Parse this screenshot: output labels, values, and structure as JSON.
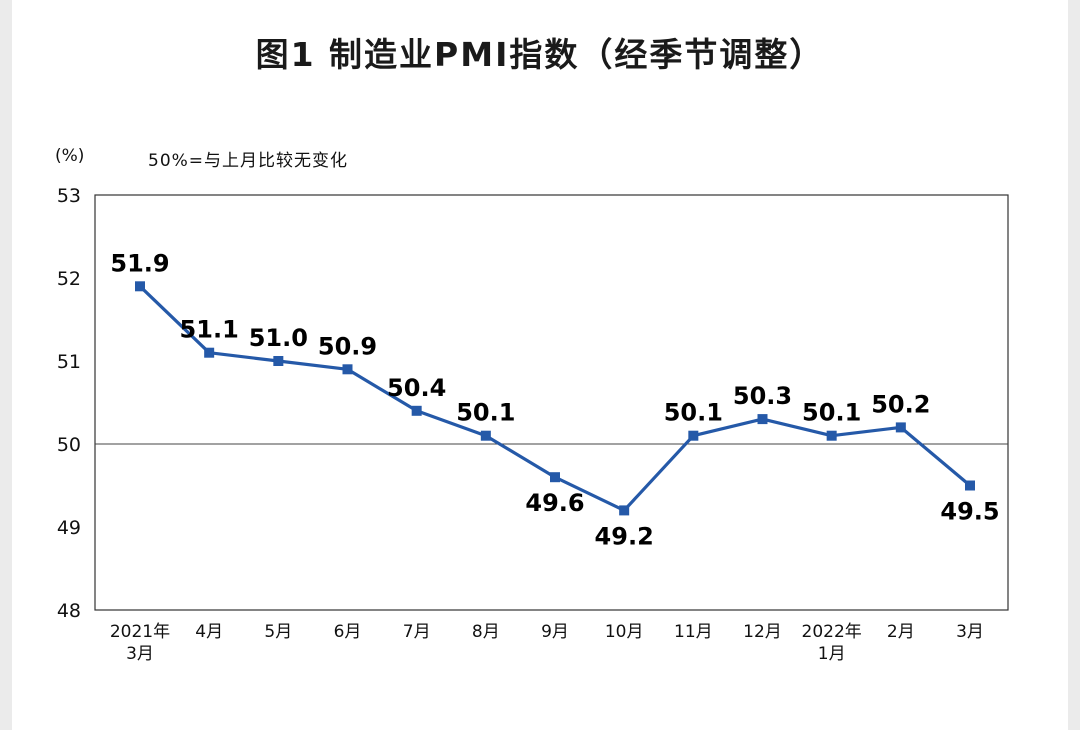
{
  "page": {
    "title": "图1 制造业PMI指数（经季节调整）",
    "unit_label": "(%)",
    "note": "50%=与上月比较无变化"
  },
  "chart_data": {
    "type": "line",
    "title": "图1 制造业PMI指数（经季节调整）",
    "note": "50%=与上月比较无变化",
    "unit": "%",
    "series_name": "制造业PMI指数",
    "categories": [
      "2021年\n3月",
      "4月",
      "5月",
      "6月",
      "7月",
      "8月",
      "9月",
      "10月",
      "11月",
      "12月",
      "2022年\n1月",
      "2月",
      "3月"
    ],
    "values": [
      51.9,
      51.1,
      51.0,
      50.9,
      50.4,
      50.1,
      49.6,
      49.2,
      50.1,
      50.3,
      50.1,
      50.2,
      49.5
    ],
    "ylim": [
      48,
      53
    ],
    "yticks": [
      53,
      52,
      51,
      50,
      49,
      48
    ],
    "reference_line": 50,
    "line_color": "#2559A8",
    "marker": "square",
    "grid": false,
    "legend_position": "none"
  }
}
